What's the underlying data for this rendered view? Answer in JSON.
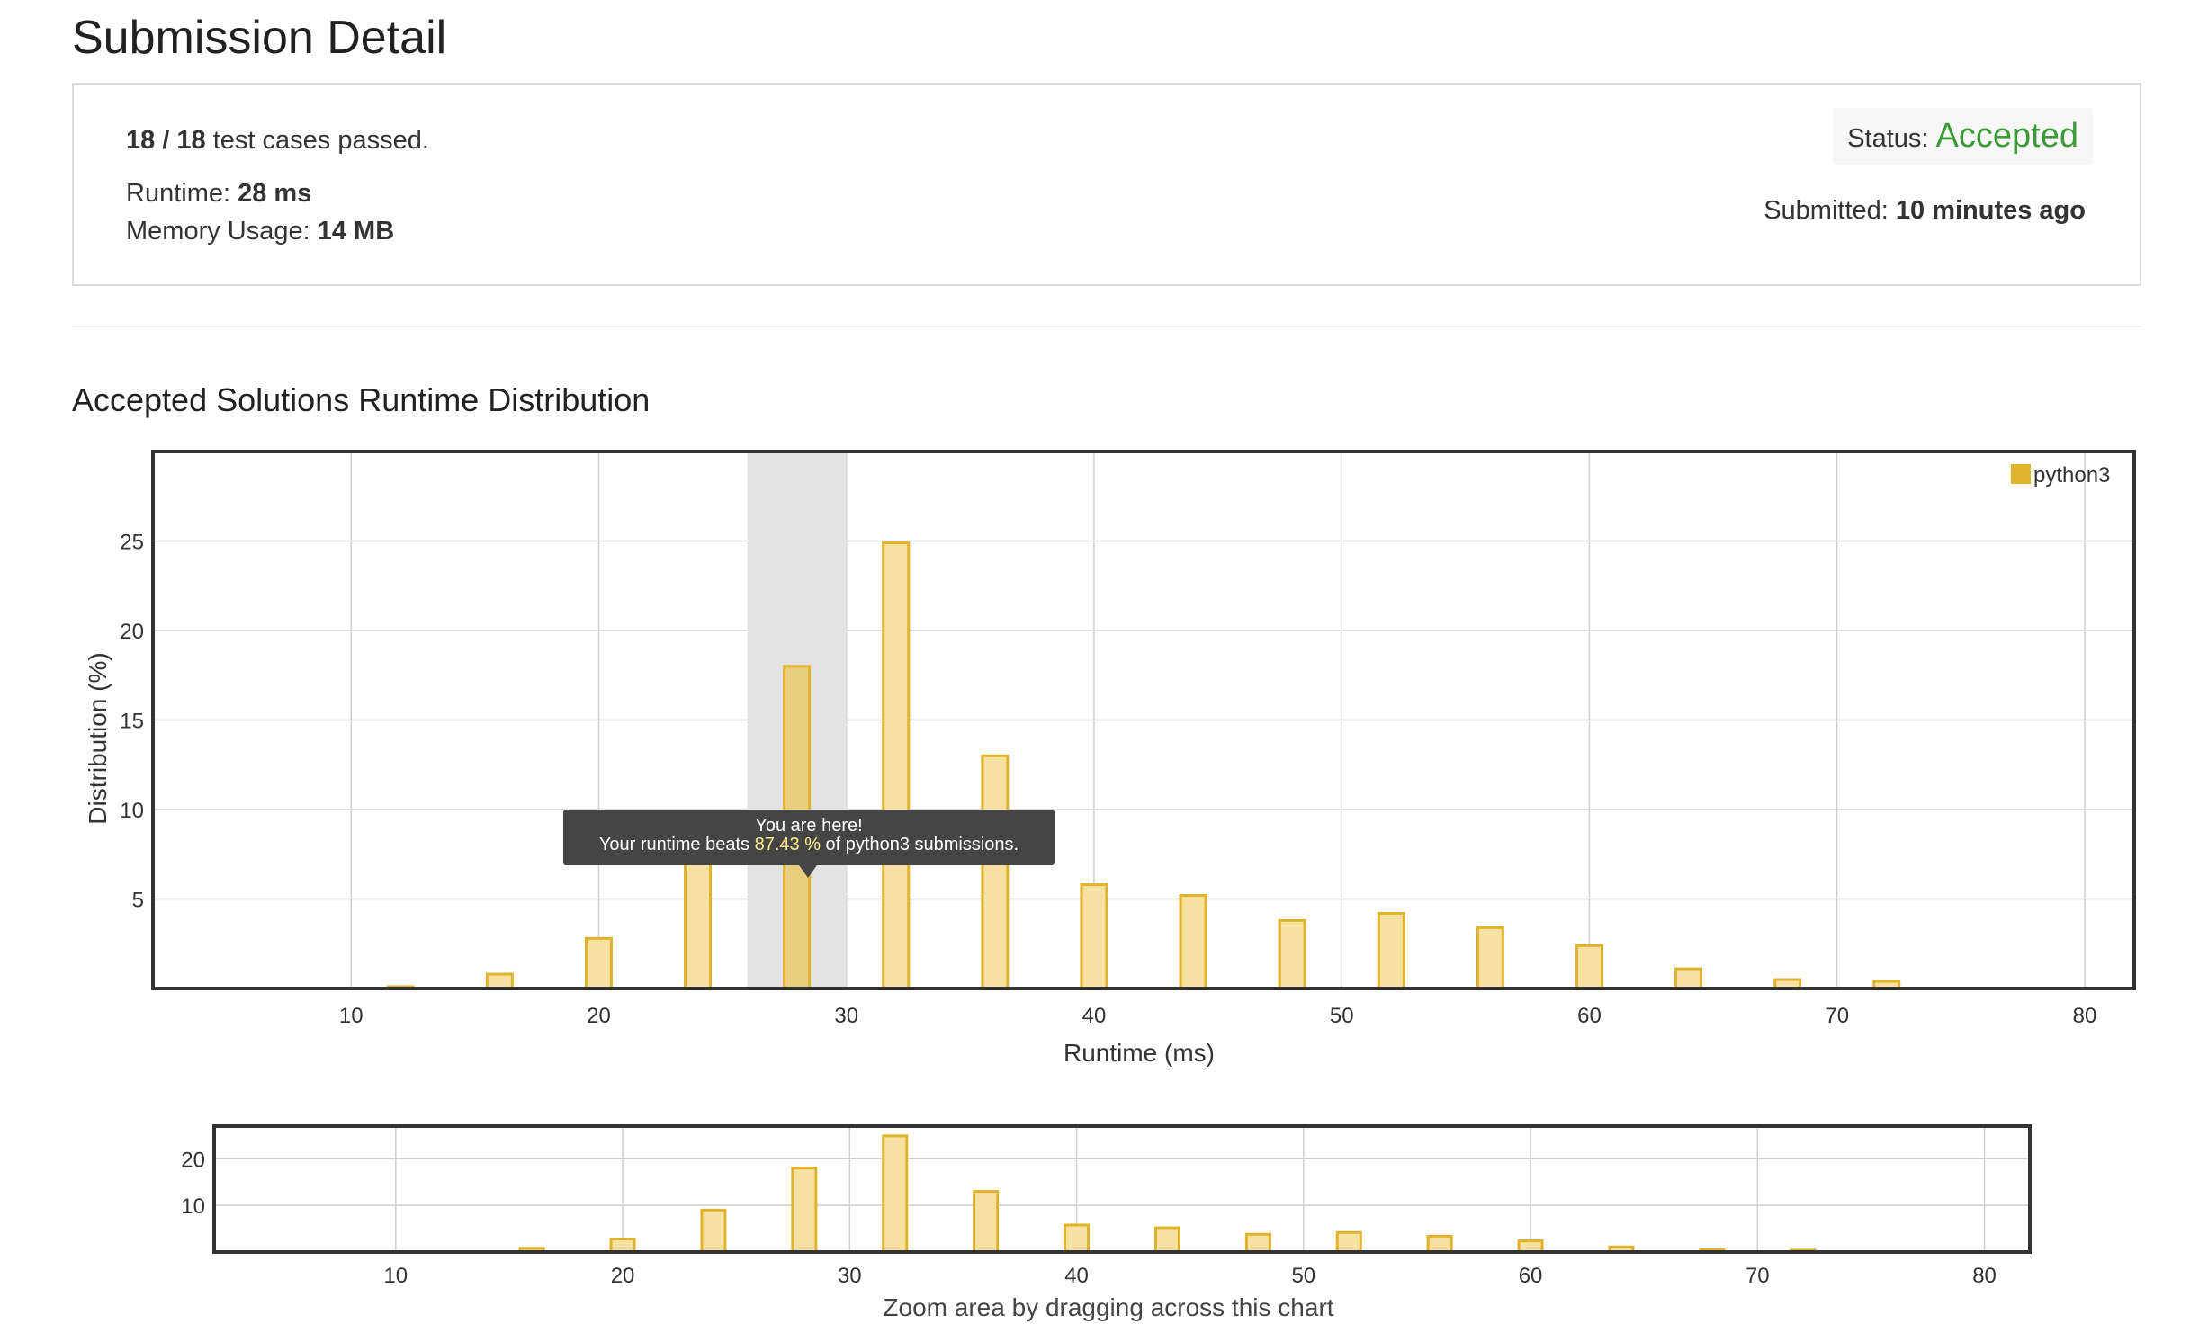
{
  "page": {
    "title": "Submission Detail",
    "section_title": "Accepted Solutions Runtime Distribution"
  },
  "submission": {
    "passed": "18 / 18",
    "passed_suffix": " test cases passed.",
    "runtime_label": "Runtime: ",
    "runtime_value": "28 ms",
    "memory_label": "Memory Usage: ",
    "memory_value": "14 MB",
    "status_label": "Status: ",
    "status_value": "Accepted",
    "submitted_label": "Submitted: ",
    "submitted_value": "10 minutes ago"
  },
  "colors": {
    "accepted": "#3c9b37",
    "bar_fill": "#f6e1a3",
    "bar_stroke": "#e1b32b",
    "highlight_band": "#e3e3e3"
  },
  "tooltip": {
    "line1": "You are here!",
    "line2_prefix": "Your runtime beats ",
    "line2_pct": "87.43 %",
    "line2_suffix": " of python3 submissions."
  },
  "chart_data": [
    {
      "type": "bar",
      "series": [
        {
          "name": "python3",
          "x": [
            12,
            16,
            20,
            24,
            28,
            32,
            36,
            40,
            44,
            48,
            52,
            56,
            60,
            64,
            68,
            72
          ],
          "values": [
            0.1,
            0.8,
            2.8,
            9.0,
            18.0,
            24.9,
            13.0,
            5.8,
            5.2,
            3.8,
            4.2,
            3.4,
            2.4,
            1.1,
            0.5,
            0.4
          ]
        }
      ],
      "ylabel": "Distribution (%)",
      "xlabel": "Runtime (ms)",
      "xlim": [
        2,
        82
      ],
      "ylim": [
        0,
        30
      ],
      "x_ticks": [
        10,
        20,
        30,
        40,
        50,
        60,
        70,
        80
      ],
      "y_ticks": [
        5,
        10,
        15,
        20,
        25
      ],
      "highlight_range": [
        26,
        30
      ],
      "highlight_bar_x": 28,
      "legend": "top-right",
      "grid": true
    },
    {
      "type": "bar",
      "role": "overview",
      "xlabel": "Zoom area by dragging across this chart",
      "xlim": [
        2,
        82
      ],
      "ylim": [
        0,
        27
      ],
      "x_ticks": [
        10,
        20,
        30,
        40,
        50,
        60,
        70,
        80
      ],
      "y_ticks": [
        10,
        20
      ],
      "grid": true
    }
  ]
}
